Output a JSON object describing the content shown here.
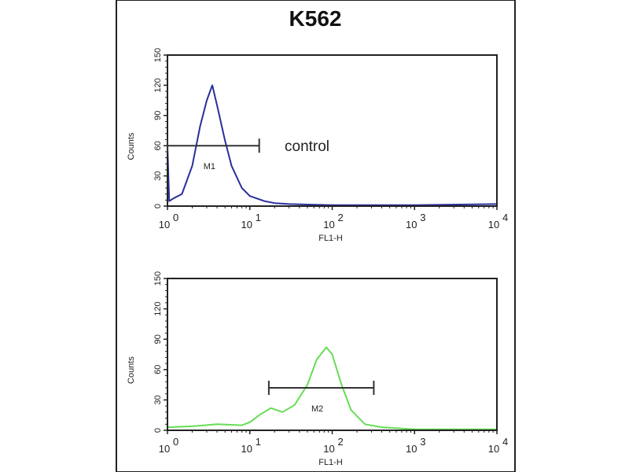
{
  "chart_data": [
    {
      "type": "line",
      "title": "K562",
      "xlabel": "FL1-H",
      "ylabel": "Counts",
      "xscale": "log",
      "xlim": [
        1,
        10000
      ],
      "ylim": [
        0,
        150
      ],
      "xticks": [
        {
          "base": "10",
          "exp": "0"
        },
        {
          "base": "10",
          "exp": "1"
        },
        {
          "base": "10",
          "exp": "2"
        },
        {
          "base": "10",
          "exp": "3"
        },
        {
          "base": "10",
          "exp": "4"
        }
      ],
      "yticks": [
        "0",
        "30",
        "60",
        "90",
        "120",
        "150"
      ],
      "annotation": "control",
      "marker": {
        "label": "M1",
        "from": 1,
        "to": 13,
        "count": 60
      },
      "color": "#2a2f9a",
      "series": [
        {
          "x": [
            1,
            1.05,
            1.2,
            1.5,
            2,
            2.5,
            3,
            3.5,
            4,
            5,
            6,
            8,
            10,
            15,
            20,
            30,
            100,
            1000,
            10000
          ],
          "y": [
            60,
            5,
            8,
            12,
            40,
            80,
            105,
            120,
            100,
            65,
            40,
            18,
            10,
            5,
            3,
            2,
            1,
            1,
            2
          ]
        }
      ]
    },
    {
      "type": "line",
      "xlabel": "FL1-H",
      "ylabel": "Counts",
      "xscale": "log",
      "xlim": [
        1,
        10000
      ],
      "ylim": [
        0,
        150
      ],
      "xticks": [
        {
          "base": "10",
          "exp": "0"
        },
        {
          "base": "10",
          "exp": "1"
        },
        {
          "base": "10",
          "exp": "2"
        },
        {
          "base": "10",
          "exp": "3"
        },
        {
          "base": "10",
          "exp": "4"
        }
      ],
      "yticks": [
        "0",
        "30",
        "60",
        "90",
        "120",
        "150"
      ],
      "marker": {
        "label": "M2",
        "from": 17,
        "to": 320,
        "count": 42
      },
      "color": "#66dd55",
      "series": [
        {
          "x": [
            1,
            2,
            4,
            8,
            10,
            13,
            18,
            25,
            35,
            50,
            65,
            85,
            100,
            130,
            170,
            250,
            400,
            1000,
            10000
          ],
          "y": [
            3,
            4,
            6,
            5,
            8,
            15,
            22,
            18,
            25,
            45,
            70,
            82,
            75,
            45,
            20,
            6,
            3,
            1,
            1
          ]
        }
      ]
    }
  ]
}
